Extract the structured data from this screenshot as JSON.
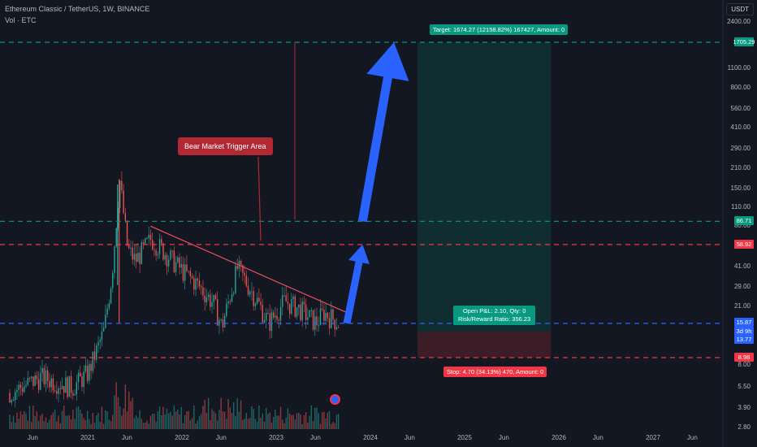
{
  "header": {
    "title": "Ethereum Classic / TetherUS, 1W, BINANCE",
    "volume_label": "Vol · ETC",
    "currency": "USDT"
  },
  "y_axis_labels": [
    "2400.00",
    "1100.00",
    "800.00",
    "560.00",
    "410.00",
    "290.00",
    "210.00",
    "150.00",
    "110.00",
    "80.00",
    "41.00",
    "29.00",
    "21.00",
    "8.00",
    "5.50",
    "3.90",
    "2.80"
  ],
  "x_axis_labels": [
    "Jun",
    "2021",
    "Jun",
    "2022",
    "Jun",
    "2023",
    "Jun",
    "2024",
    "Jun",
    "2025",
    "Jun",
    "2026",
    "Jun",
    "2027",
    "Jun"
  ],
  "price_tags": [
    {
      "value": "1705.29",
      "color": "#089981"
    },
    {
      "value": "86.71",
      "color": "#089981"
    },
    {
      "value": "58.92",
      "color": "#f23645"
    },
    {
      "value": "15.87",
      "color": "#2962ff"
    },
    {
      "value": "3d 9h",
      "color": "#2962ff"
    },
    {
      "value": "13.77",
      "color": "#2962ff"
    },
    {
      "value": "8.98",
      "color": "#f23645"
    }
  ],
  "position": {
    "target_label": "Target: 1674.27 (12158.82%) 167427, Amount: 0",
    "open_pl_label": "Open P&L: 2.10, Qty: 0",
    "rr_label": "Risk/Reward Ratio: 356.23",
    "stop_label": "Stop: 4.70 (34.13%) 470, Amount: 0"
  },
  "annotation": {
    "text": "Bear Market Trigger Area"
  },
  "colors": {
    "up": "#26a69a",
    "down": "#ef5350",
    "target": "#089981",
    "stop": "#f23645",
    "entry": "#2962ff",
    "arrow": "#2962ff",
    "trendline": "#e04b5a"
  },
  "chart_data": {
    "type": "candlestick",
    "title": "Ethereum Classic / TetherUS, 1W, BINANCE",
    "y_scale": "log",
    "y_range": [
      2.8,
      2400
    ],
    "x_range": [
      "2020-03",
      "2027-09"
    ],
    "horizontal_levels": [
      {
        "value": 1705.29,
        "style": "dashed",
        "color": "#089981"
      },
      {
        "value": 86.71,
        "style": "dashed",
        "color": "#089981"
      },
      {
        "value": 58.92,
        "style": "dashed",
        "color": "#f23645"
      },
      {
        "value": 15.87,
        "style": "dashed",
        "color": "#2962ff"
      },
      {
        "value": 8.98,
        "style": "dashed",
        "color": "#f23645"
      }
    ],
    "price_path": [
      {
        "date": "2020-03",
        "price": 5.0
      },
      {
        "date": "2020-07",
        "price": 6.5
      },
      {
        "date": "2020-11",
        "price": 5.5
      },
      {
        "date": "2021-01",
        "price": 7.0
      },
      {
        "date": "2021-03",
        "price": 14.0
      },
      {
        "date": "2021-04",
        "price": 35.0
      },
      {
        "date": "2021-05",
        "price": 175.0
      },
      {
        "date": "2021-06",
        "price": 55.0
      },
      {
        "date": "2021-07",
        "price": 45.0
      },
      {
        "date": "2021-09",
        "price": 65.0
      },
      {
        "date": "2021-11",
        "price": 50.0
      },
      {
        "date": "2022-01",
        "price": 38.0
      },
      {
        "date": "2022-03",
        "price": 30.0
      },
      {
        "date": "2022-05",
        "price": 22.0
      },
      {
        "date": "2022-06",
        "price": 15.0
      },
      {
        "date": "2022-08",
        "price": 40.0
      },
      {
        "date": "2022-10",
        "price": 26.0
      },
      {
        "date": "2022-12",
        "price": 16.0
      },
      {
        "date": "2023-02",
        "price": 23.0
      },
      {
        "date": "2023-04",
        "price": 20.0
      },
      {
        "date": "2023-06",
        "price": 16.0
      },
      {
        "date": "2023-07",
        "price": 19.0
      },
      {
        "date": "2023-09",
        "price": 15.87
      }
    ],
    "trendline": [
      {
        "date": "2021-09",
        "price": 80.0
      },
      {
        "date": "2023-10",
        "price": 19.0
      }
    ],
    "projection_arrows": [
      [
        {
          "date": "2023-10",
          "price": 15.87
        },
        {
          "date": "2023-12",
          "price": 58.92
        }
      ],
      [
        {
          "date": "2023-12",
          "price": 86.71
        },
        {
          "date": "2024-04",
          "price": 1705.29
        }
      ]
    ],
    "long_position": {
      "entry": 13.77,
      "target": 1705.29,
      "stop": 8.98,
      "start": "2024-07",
      "end": "2025-12"
    }
  }
}
